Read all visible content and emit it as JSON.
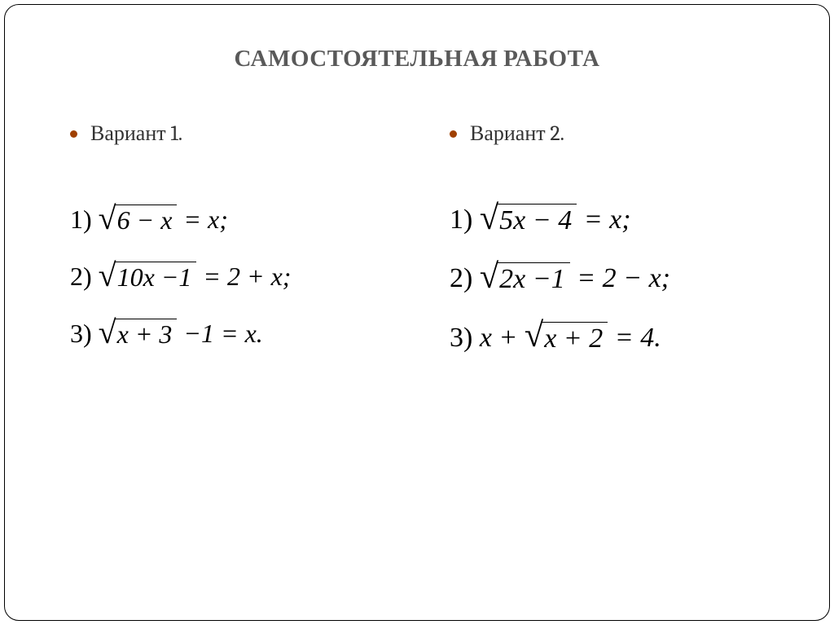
{
  "title": "САМОСТОЯТЕЛЬНАЯ РАБОТА",
  "colors": {
    "title_color": "#595959",
    "bullet_color": "#a04000",
    "text_color": "#000000",
    "border_color": "#000000",
    "background": "#ffffff"
  },
  "typography": {
    "title_fontsize": 29,
    "variant_fontsize": 26,
    "equation_fontsize_col1": 32,
    "equation_fontsize_col2": 34,
    "math_font": "Times New Roman"
  },
  "variant1": {
    "label": "Вариант 1.",
    "equations": [
      {
        "n": "1)",
        "rad": "6 − x",
        "rhs": " = x;"
      },
      {
        "n": "2)",
        "rad": "10x −1",
        "rhs": " = 2 + x;"
      },
      {
        "n": "3)",
        "rad": "x + 3",
        "rhs": " −1 = x."
      }
    ]
  },
  "variant2": {
    "label": "Вариант 2.",
    "equations": [
      {
        "n": "1)",
        "rad": "5x − 4",
        "rhs": " = x;"
      },
      {
        "n": "2)",
        "rad": "2x −1",
        "rhs": " = 2 − x;"
      },
      {
        "n": "3)",
        "lhs": "x + ",
        "rad": "x + 2",
        "rhs": " = 4."
      }
    ]
  }
}
